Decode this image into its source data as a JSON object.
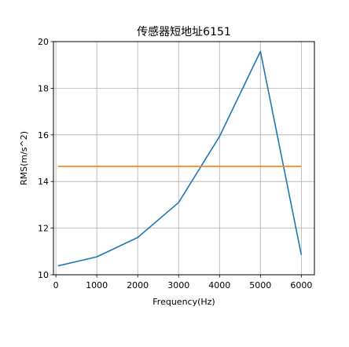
{
  "chart_data": {
    "type": "line",
    "title": "传感器短地址6151",
    "xlabel": "Frequency(Hz)",
    "ylabel": "RMS(m/s^2)",
    "xlim": [
      -60,
      6320
    ],
    "ylim": [
      10,
      20
    ],
    "xticks": [
      0,
      1000,
      2000,
      3000,
      4000,
      5000,
      6000
    ],
    "yticks": [
      10,
      12,
      14,
      16,
      18,
      20
    ],
    "grid": true,
    "series": [
      {
        "color": "#1f77b4",
        "x": [
          50,
          1000,
          2000,
          3000,
          4000,
          5000,
          6000
        ],
        "y": [
          10.38,
          10.77,
          11.6,
          13.1,
          15.93,
          19.58,
          10.85
        ]
      },
      {
        "color": "#ff7f0e",
        "x": [
          50,
          6000
        ],
        "y": [
          14.65,
          14.65
        ]
      }
    ]
  }
}
